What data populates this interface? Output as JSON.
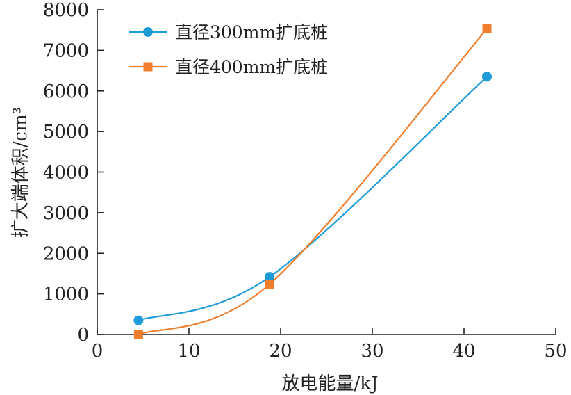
{
  "chart_data": {
    "type": "line",
    "xlabel": "放电能量/kJ",
    "ylabel": "扩大端体积/cm³",
    "xlim": [
      0,
      50
    ],
    "ylim": [
      0,
      8000
    ],
    "xticks": [
      0,
      10,
      20,
      30,
      40,
      50
    ],
    "yticks": [
      0,
      1000,
      2000,
      3000,
      4000,
      5000,
      6000,
      7000,
      8000
    ],
    "grid": false,
    "legend_position": "top-left",
    "smooth": true,
    "series": [
      {
        "name": "直径300mm扩底桩",
        "color": "#1f9bd7",
        "marker": "circle",
        "x": [
          4.5,
          18.8,
          42.5
        ],
        "y": [
          350,
          1420,
          6350
        ]
      },
      {
        "name": "直径400mm扩底桩",
        "color": "#f07f2d",
        "marker": "square",
        "x": [
          4.5,
          18.8,
          42.5
        ],
        "y": [
          0,
          1240,
          7530
        ]
      }
    ]
  }
}
